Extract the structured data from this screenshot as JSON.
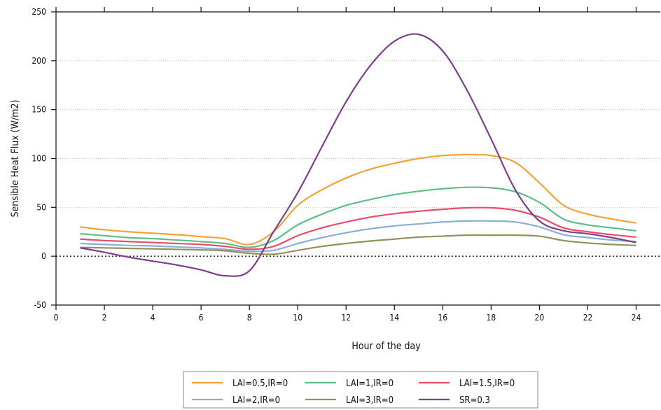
{
  "chart_data": {
    "type": "line",
    "title": "",
    "xlabel": "Hour of the day",
    "ylabel": "Sensible Heat Flux (W/m2)",
    "xlim": [
      0,
      25
    ],
    "ylim": [
      -50,
      250
    ],
    "xticks": [
      0,
      2,
      4,
      6,
      8,
      10,
      12,
      14,
      16,
      18,
      20,
      22,
      24
    ],
    "yticks": [
      -50,
      0,
      50,
      100,
      150,
      200,
      250
    ],
    "grid": "horizontal dotted",
    "zero_line": "dotted",
    "legend_position": "bottom",
    "x": [
      1,
      2,
      3,
      4,
      5,
      6,
      7,
      8,
      9,
      10,
      11,
      12,
      13,
      14,
      15,
      16,
      17,
      18,
      19,
      20,
      21,
      22,
      23,
      24
    ],
    "series": [
      {
        "name": "LAI=0.5,IR=0",
        "color": "#f5a238",
        "values": [
          30,
          27,
          25,
          23.5,
          22,
          20,
          18,
          12,
          25,
          52,
          68,
          80,
          89,
          95,
          100,
          103,
          104,
          103,
          96,
          75,
          52,
          43,
          38,
          34
        ]
      },
      {
        "name": "LAI=1,IR=0",
        "color": "#5cbf86",
        "values": [
          23,
          21,
          19,
          18,
          16.5,
          15,
          13,
          9,
          16,
          32,
          43,
          52,
          58,
          63,
          66.5,
          69,
          70.5,
          70,
          66,
          55,
          38,
          32,
          29,
          26
        ]
      },
      {
        "name": "LAI=1.5,IR=0",
        "color": "#e94d6a",
        "values": [
          17.5,
          16,
          15,
          14,
          13,
          12,
          10,
          7,
          10,
          21,
          29,
          35,
          40,
          43.5,
          46,
          48,
          49.5,
          49.5,
          47,
          40,
          29,
          25,
          22,
          19.5
        ]
      },
      {
        "name": "LAI=2,IR=0",
        "color": "#89aedc",
        "values": [
          13,
          12,
          11,
          10.5,
          9.5,
          8.5,
          7,
          5,
          6,
          13,
          19,
          24,
          28,
          31,
          33,
          35,
          36,
          36,
          35,
          30,
          22,
          19,
          16.5,
          15
        ]
      },
      {
        "name": "LAI=3,IR=0",
        "color": "#93915b",
        "values": [
          9,
          8.5,
          8,
          7.5,
          7,
          6.5,
          5.5,
          3,
          2,
          6,
          10,
          13,
          15.5,
          17.5,
          19.5,
          20.5,
          21.5,
          21.5,
          21.5,
          20.5,
          16,
          13.5,
          12,
          11
        ]
      },
      {
        "name": "SR=0.3",
        "color": "#7d3f8c",
        "values": [
          8.5,
          4,
          -1,
          -5,
          -9,
          -14,
          -20,
          -15,
          25,
          65,
          112,
          158,
          195,
          220,
          227,
          210,
          170,
          120,
          68,
          36,
          26,
          23,
          19,
          14
        ]
      }
    ]
  }
}
